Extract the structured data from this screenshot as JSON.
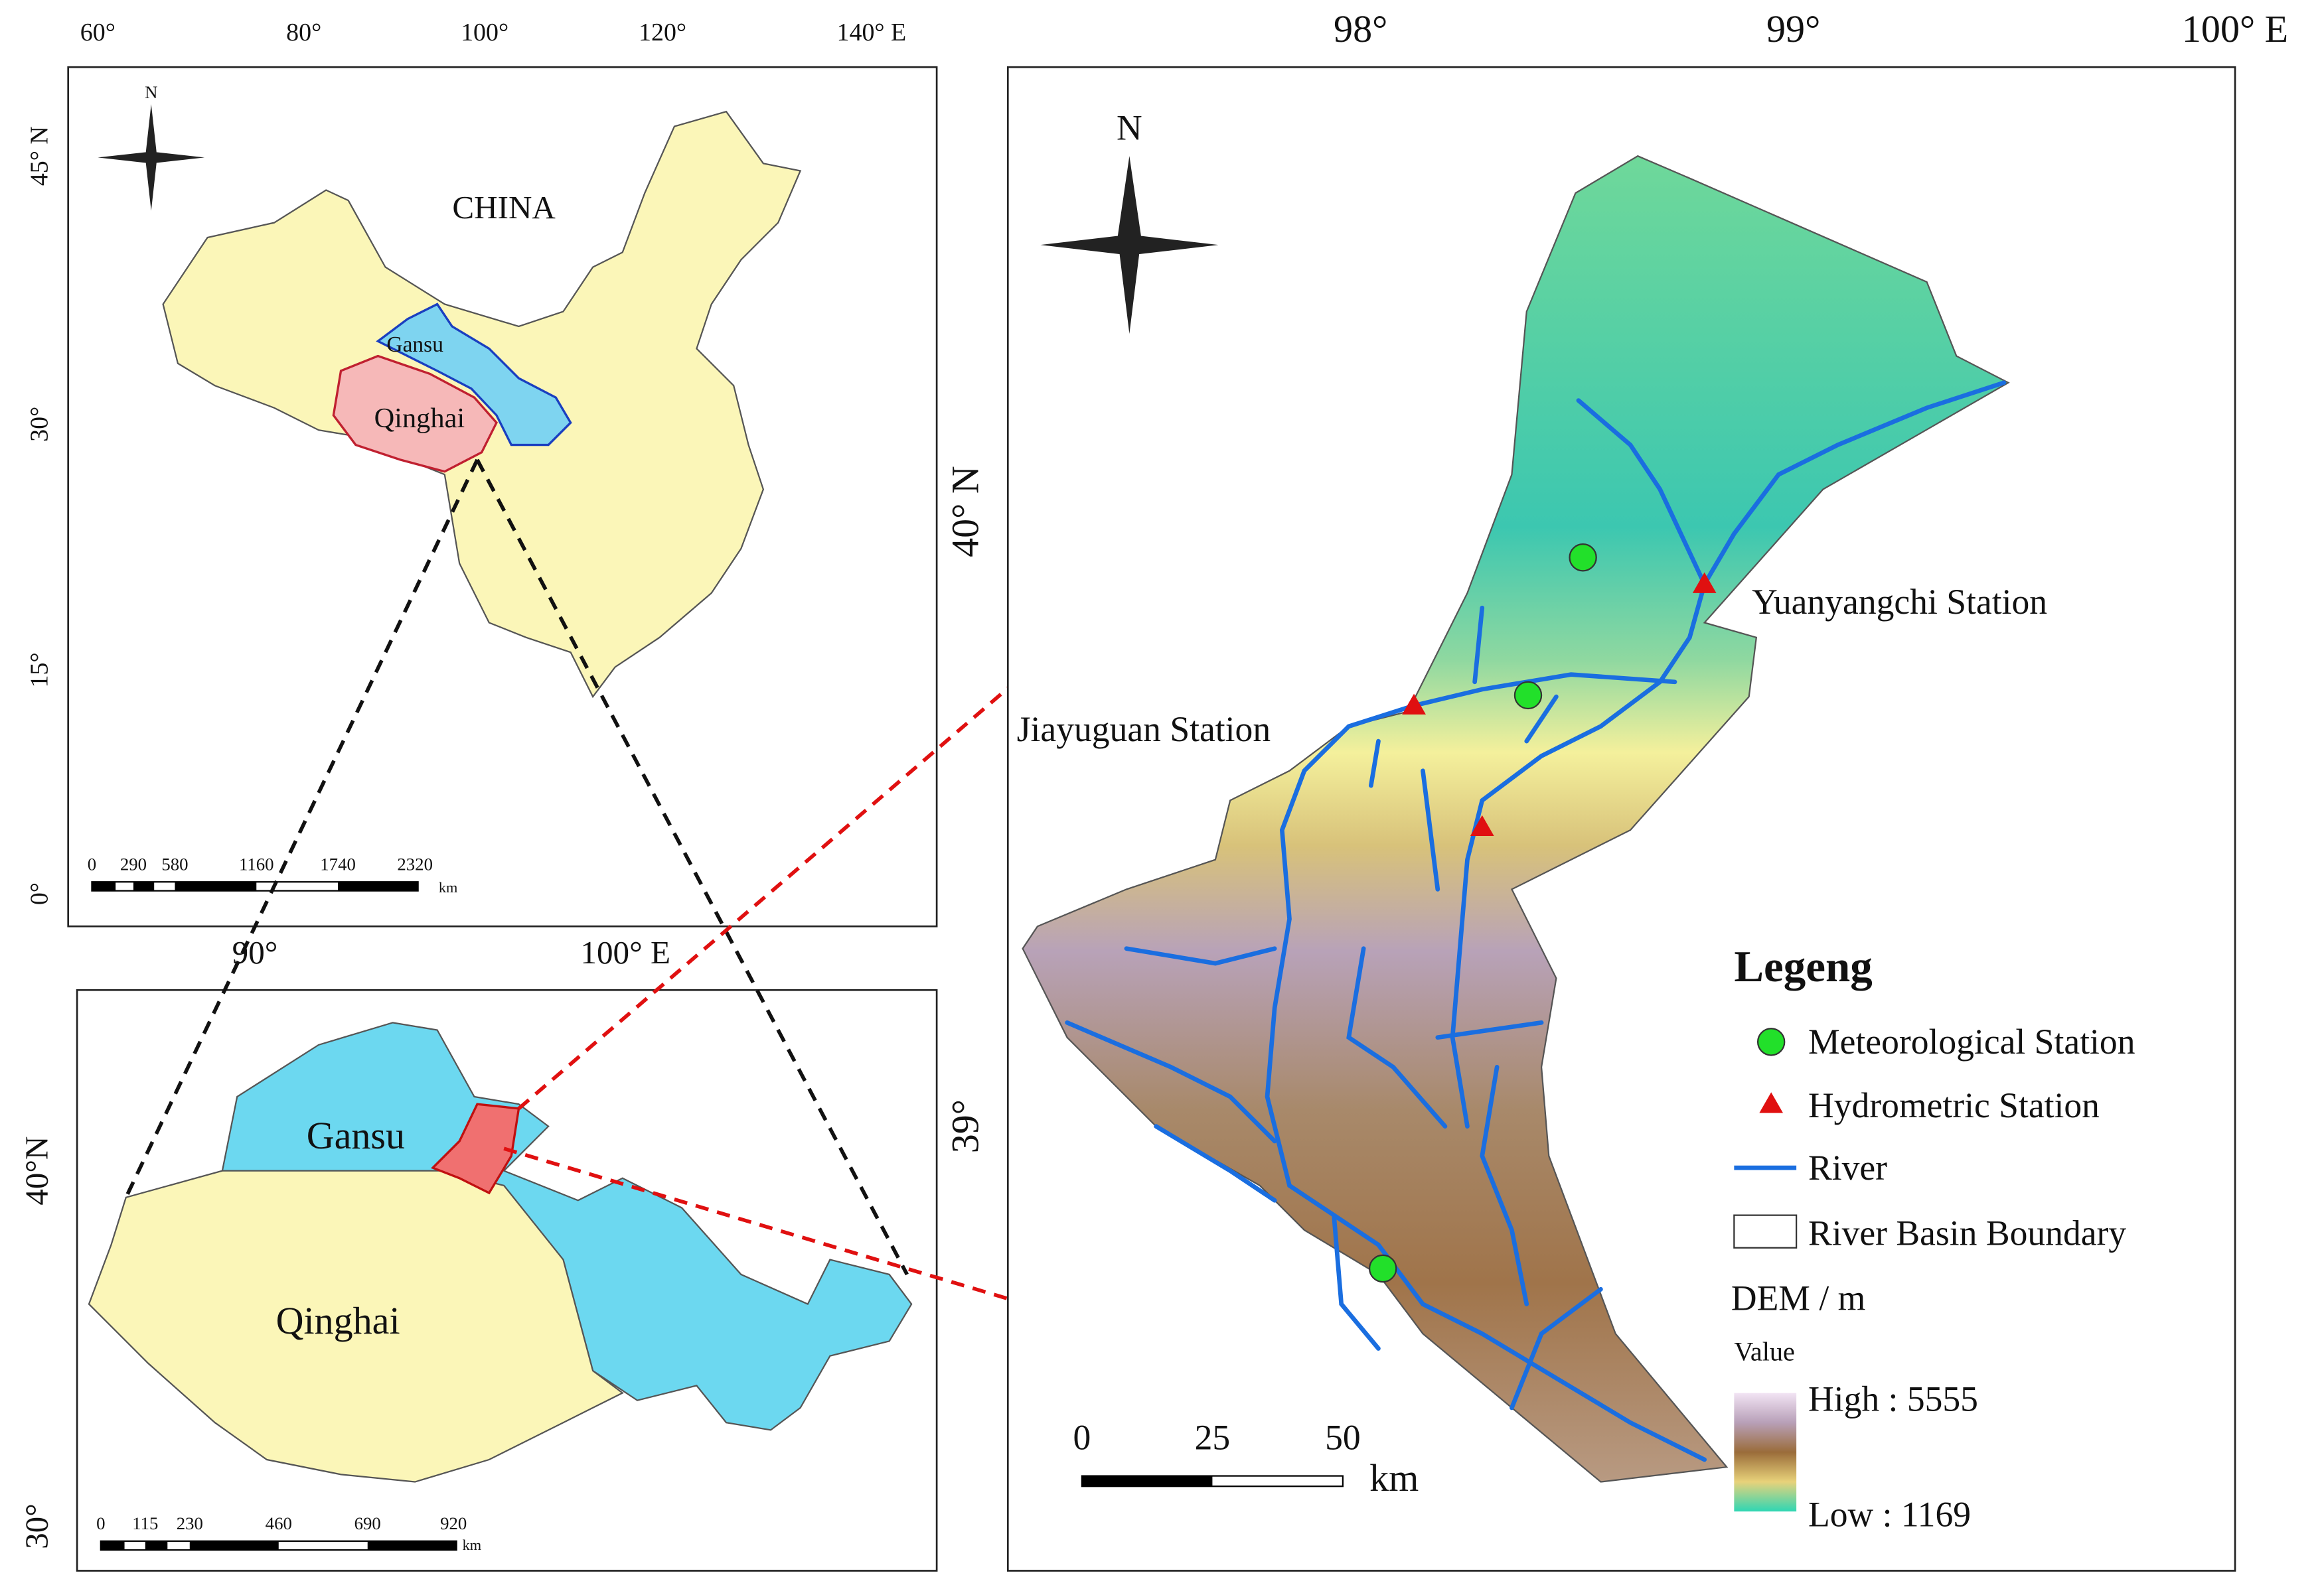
{
  "overview_map": {
    "lon_labels": [
      "60°",
      "80°",
      "100°",
      "120°",
      "140° E"
    ],
    "lat_labels": [
      "45° N",
      "30°",
      "15°",
      "0°"
    ],
    "north": "N",
    "country": "CHINA",
    "provinces": [
      "Gansu",
      "Qinghai"
    ],
    "scale_labels": [
      "0",
      "290",
      "580",
      "1160",
      "1740",
      "2320"
    ],
    "scale_unit": "km"
  },
  "province_map": {
    "lon_labels": [
      "90°",
      "100° E"
    ],
    "lat_labels": [
      "40°N",
      "30°"
    ],
    "provinces": [
      "Gansu",
      "Qinghai"
    ],
    "scale_labels": [
      "0",
      "115",
      "230",
      "460",
      "690",
      "920"
    ],
    "scale_unit": "km"
  },
  "basin_map": {
    "lon_labels": [
      "98°",
      "99°",
      "100° E"
    ],
    "lat_labels": [
      "40° N",
      "39°"
    ],
    "north": "N",
    "stations": [
      "Yuanyangchi Station",
      "Jiayuguan Station"
    ],
    "legend": {
      "title": "Legeng",
      "items": [
        "Meteorological Station",
        "Hydrometric Station",
        "River",
        "River Basin Boundary"
      ],
      "dem_title": "DEM / m",
      "dem_subtitle": "Value",
      "high": "High : 5555",
      "low": "Low : 1169"
    },
    "scale_labels": [
      "0",
      "25",
      "50"
    ],
    "scale_unit": "km"
  }
}
